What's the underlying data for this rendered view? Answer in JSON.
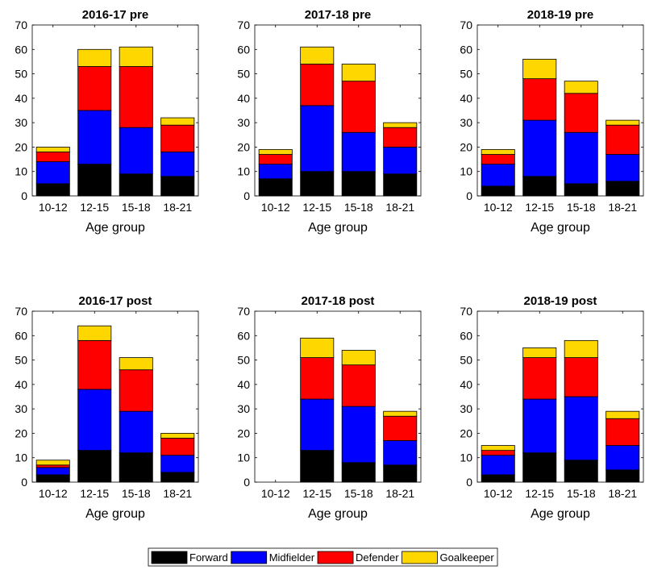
{
  "colors": {
    "Forward": "#000000",
    "Midfielder": "#0000ff",
    "Defender": "#ff0000",
    "Goalkeeper": "#ffd700"
  },
  "legend": {
    "placement": "bottom-center",
    "entries": [
      "Forward",
      "Midfielder",
      "Defender",
      "Goalkeeper"
    ]
  },
  "chart_data": [
    {
      "type": "bar",
      "stacked": true,
      "title": "2016-17 pre",
      "xlabel": "Age group",
      "ylabel": "",
      "ylim": [
        0,
        70
      ],
      "yticks": [
        0,
        10,
        20,
        30,
        40,
        50,
        60,
        70
      ],
      "categories": [
        "10-12",
        "12-15",
        "15-18",
        "18-21"
      ],
      "series": [
        {
          "name": "Forward",
          "values": [
            5,
            13,
            9,
            8
          ]
        },
        {
          "name": "Midfielder",
          "values": [
            9,
            22,
            19,
            10
          ]
        },
        {
          "name": "Defender",
          "values": [
            4,
            18,
            25,
            11
          ]
        },
        {
          "name": "Goalkeeper",
          "values": [
            2,
            7,
            8,
            3
          ]
        }
      ]
    },
    {
      "type": "bar",
      "stacked": true,
      "title": "2017-18 pre",
      "xlabel": "Age group",
      "ylabel": "",
      "ylim": [
        0,
        70
      ],
      "yticks": [
        0,
        10,
        20,
        30,
        40,
        50,
        60,
        70
      ],
      "categories": [
        "10-12",
        "12-15",
        "15-18",
        "18-21"
      ],
      "series": [
        {
          "name": "Forward",
          "values": [
            7,
            10,
            10,
            9
          ]
        },
        {
          "name": "Midfielder",
          "values": [
            6,
            27,
            16,
            11
          ]
        },
        {
          "name": "Defender",
          "values": [
            4,
            17,
            21,
            8
          ]
        },
        {
          "name": "Goalkeeper",
          "values": [
            2,
            7,
            7,
            2
          ]
        }
      ]
    },
    {
      "type": "bar",
      "stacked": true,
      "title": "2018-19 pre",
      "xlabel": "Age group",
      "ylabel": "",
      "ylim": [
        0,
        70
      ],
      "yticks": [
        0,
        10,
        20,
        30,
        40,
        50,
        60,
        70
      ],
      "categories": [
        "10-12",
        "12-15",
        "15-18",
        "18-21"
      ],
      "series": [
        {
          "name": "Forward",
          "values": [
            4,
            8,
            5,
            6
          ]
        },
        {
          "name": "Midfielder",
          "values": [
            9,
            23,
            21,
            11
          ]
        },
        {
          "name": "Defender",
          "values": [
            4,
            17,
            16,
            12
          ]
        },
        {
          "name": "Goalkeeper",
          "values": [
            2,
            8,
            5,
            2
          ]
        }
      ]
    },
    {
      "type": "bar",
      "stacked": true,
      "title": "2016-17 post",
      "xlabel": "Age group",
      "ylabel": "",
      "ylim": [
        0,
        70
      ],
      "yticks": [
        0,
        10,
        20,
        30,
        40,
        50,
        60,
        70
      ],
      "categories": [
        "10-12",
        "12-15",
        "15-18",
        "18-21"
      ],
      "series": [
        {
          "name": "Forward",
          "values": [
            3,
            13,
            12,
            4
          ]
        },
        {
          "name": "Midfielder",
          "values": [
            3,
            25,
            17,
            7
          ]
        },
        {
          "name": "Defender",
          "values": [
            1,
            20,
            17,
            7
          ]
        },
        {
          "name": "Goalkeeper",
          "values": [
            2,
            6,
            5,
            2
          ]
        }
      ]
    },
    {
      "type": "bar",
      "stacked": true,
      "title": "2017-18 post",
      "xlabel": "Age group",
      "ylabel": "",
      "ylim": [
        0,
        70
      ],
      "yticks": [
        0,
        10,
        20,
        30,
        40,
        50,
        60,
        70
      ],
      "categories": [
        "10-12",
        "12-15",
        "15-18",
        "18-21"
      ],
      "series": [
        {
          "name": "Forward",
          "values": [
            0,
            13,
            8,
            7
          ]
        },
        {
          "name": "Midfielder",
          "values": [
            0,
            21,
            23,
            10
          ]
        },
        {
          "name": "Defender",
          "values": [
            0,
            17,
            17,
            10
          ]
        },
        {
          "name": "Goalkeeper",
          "values": [
            0,
            8,
            6,
            2
          ]
        }
      ]
    },
    {
      "type": "bar",
      "stacked": true,
      "title": "2018-19 post",
      "xlabel": "Age group",
      "ylabel": "",
      "ylim": [
        0,
        70
      ],
      "yticks": [
        0,
        10,
        20,
        30,
        40,
        50,
        60,
        70
      ],
      "categories": [
        "10-12",
        "12-15",
        "15-18",
        "18-21"
      ],
      "series": [
        {
          "name": "Forward",
          "values": [
            3,
            12,
            9,
            5
          ]
        },
        {
          "name": "Midfielder",
          "values": [
            8,
            22,
            26,
            10
          ]
        },
        {
          "name": "Defender",
          "values": [
            2,
            17,
            16,
            11
          ]
        },
        {
          "name": "Goalkeeper",
          "values": [
            2,
            4,
            7,
            3
          ]
        }
      ]
    }
  ]
}
